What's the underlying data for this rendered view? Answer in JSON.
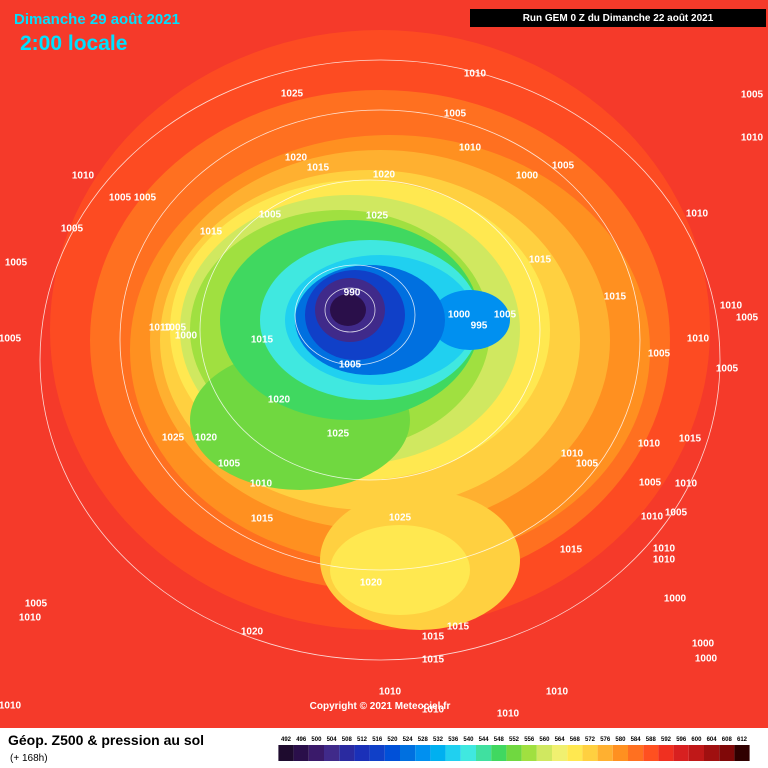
{
  "header": {
    "title": "Dimanche 29 août 2021",
    "time": "2:00 locale",
    "run": "Run GEM 0 Z du Dimanche 22 août 2021"
  },
  "map": {
    "copyright": "Copyright © 2021 Meteociel.fr",
    "isobar_labels": [
      "1025",
      "1010",
      "1005",
      "1010",
      "1020",
      "1015",
      "1020",
      "1000",
      "1005",
      "1010",
      "1005",
      "1005",
      "1005",
      "1025",
      "1010",
      "1005",
      "1015",
      "1005",
      "1015",
      "990",
      "1015",
      "1010",
      "1005",
      "1000",
      "1015",
      "1000",
      "995",
      "1005",
      "1010",
      "1005",
      "1005",
      "1010",
      "1005",
      "1005",
      "1005",
      "1020",
      "1025",
      "1020",
      "1025",
      "1010",
      "1015",
      "1005",
      "1010",
      "1005",
      "1010",
      "1005",
      "1010",
      "1015",
      "1025",
      "1010",
      "1005",
      "1015",
      "1010",
      "1010",
      "1020",
      "1000",
      "1005",
      "1010",
      "1020",
      "1015",
      "1015",
      "1015",
      "1000",
      "1000",
      "1010",
      "1010",
      "1010",
      "1010",
      "1010",
      "1010",
      "1005"
    ]
  },
  "footer": {
    "title": "Géop. Z500 & pression au sol",
    "subtitle": "(+ 168h)"
  },
  "legend": {
    "values": [
      492,
      496,
      500,
      504,
      508,
      512,
      516,
      520,
      524,
      528,
      532,
      536,
      540,
      544,
      548,
      552,
      556,
      560,
      564,
      568,
      572,
      576,
      580,
      584,
      588,
      592,
      596,
      600,
      604,
      608,
      612
    ],
    "colors": [
      "#1e0b2e",
      "#2a0f4a",
      "#3a1a6a",
      "#402a8a",
      "#2a2aa0",
      "#1a30b8",
      "#1040c8",
      "#0050d8",
      "#0070e0",
      "#0090f0",
      "#00b0f0",
      "#20d0f0",
      "#40e8e0",
      "#40e0a0",
      "#40d860",
      "#70d840",
      "#a0e040",
      "#d0e860",
      "#f0f070",
      "#ffe850",
      "#ffd040",
      "#ffb030",
      "#ff9020",
      "#ff7020",
      "#ff5020",
      "#f03020",
      "#d82020",
      "#c01818",
      "#a01010",
      "#800808",
      "#300000"
    ]
  }
}
